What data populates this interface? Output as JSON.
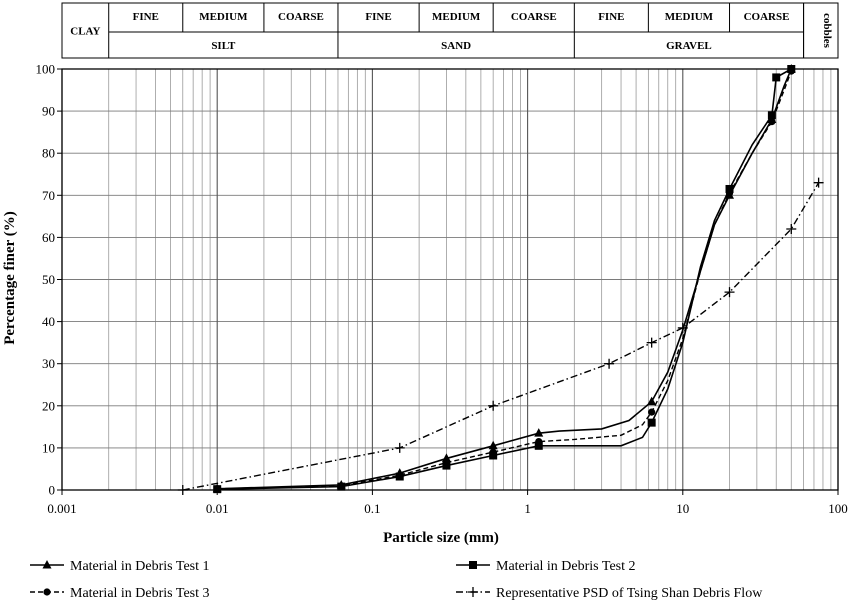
{
  "soil_table": {
    "top_row": [
      {
        "label": "FINE",
        "from": 0.002,
        "to": 0.006
      },
      {
        "label": "MEDIUM",
        "from": 0.006,
        "to": 0.02
      },
      {
        "label": "COARSE",
        "from": 0.02,
        "to": 0.06
      },
      {
        "label": "FINE",
        "from": 0.06,
        "to": 0.2
      },
      {
        "label": "MEDIUM",
        "from": 0.2,
        "to": 0.6
      },
      {
        "label": "COARSE",
        "from": 0.6,
        "to": 2
      },
      {
        "label": "FINE",
        "from": 2,
        "to": 6
      },
      {
        "label": "MEDIUM",
        "from": 6,
        "to": 20
      },
      {
        "label": "COARSE",
        "from": 20,
        "to": 60
      }
    ],
    "bottom_row": [
      {
        "label": "SILT",
        "from": 0.002,
        "to": 0.06
      },
      {
        "label": "SAND",
        "from": 0.06,
        "to": 2
      },
      {
        "label": "GRAVEL",
        "from": 2,
        "to": 60
      }
    ],
    "clay": {
      "label": "CLAY",
      "from": 0.001,
      "to": 0.002
    },
    "cobbles": {
      "label": "cobbles",
      "from": 60,
      "to": 100
    }
  },
  "chart_data": {
    "type": "line",
    "x_scale": "log",
    "xlabel": "Particle size (mm)",
    "ylabel": "Percentage finer (%)",
    "xlim": [
      0.001,
      100
    ],
    "ylim": [
      0,
      100
    ],
    "x_ticks": [
      "0.001",
      "0.01",
      "0.1",
      "1",
      "10",
      "100"
    ],
    "y_ticks": [
      "0",
      "10",
      "20",
      "30",
      "40",
      "50",
      "60",
      "70",
      "80",
      "90",
      "100"
    ],
    "grid": true,
    "legend_position": "bottom",
    "series": [
      {
        "name": "Material in Debris Test 1",
        "marker": "triangle",
        "dash": "solid",
        "points": [
          [
            0.01,
            0.3
          ],
          [
            0.063,
            1.2
          ],
          [
            0.15,
            4
          ],
          [
            0.3,
            7.5
          ],
          [
            0.6,
            10.5
          ],
          [
            1.18,
            13.5
          ],
          [
            6.3,
            21
          ],
          [
            20,
            70
          ],
          [
            37.5,
            88
          ],
          [
            50,
            100
          ]
        ],
        "curve": [
          [
            0.01,
            0.3
          ],
          [
            0.063,
            1.2
          ],
          [
            0.15,
            4
          ],
          [
            0.3,
            7.5
          ],
          [
            0.6,
            10.5
          ],
          [
            1.18,
            13.5
          ],
          [
            1.6,
            14
          ],
          [
            3,
            14.5
          ],
          [
            4.5,
            16.5
          ],
          [
            6.3,
            21
          ],
          [
            8,
            28
          ],
          [
            10,
            38
          ],
          [
            13,
            52
          ],
          [
            16,
            63
          ],
          [
            20,
            70
          ],
          [
            28,
            80
          ],
          [
            37.5,
            88
          ],
          [
            45,
            96
          ],
          [
            50,
            100
          ]
        ]
      },
      {
        "name": "Material in Debris Test 2",
        "marker": "square",
        "dash": "solid",
        "points": [
          [
            0.01,
            0.2
          ],
          [
            0.063,
            0.8
          ],
          [
            0.15,
            3.2
          ],
          [
            0.3,
            5.8
          ],
          [
            0.6,
            8.2
          ],
          [
            1.18,
            10.5
          ],
          [
            6.3,
            16
          ],
          [
            20,
            71.5
          ],
          [
            37.5,
            89
          ],
          [
            40,
            98
          ],
          [
            50,
            100
          ]
        ],
        "curve": [
          [
            0.01,
            0.2
          ],
          [
            0.063,
            0.8
          ],
          [
            0.15,
            3.2
          ],
          [
            0.3,
            5.8
          ],
          [
            0.6,
            8.2
          ],
          [
            1.18,
            10.5
          ],
          [
            2,
            10.5
          ],
          [
            4,
            10.5
          ],
          [
            5.5,
            12.5
          ],
          [
            6.3,
            16
          ],
          [
            8,
            24
          ],
          [
            10,
            35
          ],
          [
            13,
            53
          ],
          [
            16,
            64
          ],
          [
            20,
            71.5
          ],
          [
            28,
            82
          ],
          [
            37.5,
            89
          ],
          [
            40,
            98
          ],
          [
            50,
            100
          ]
        ]
      },
      {
        "name": "Material in Debris Test 3",
        "marker": "circle",
        "dash": "dashed",
        "points": [
          [
            0.01,
            0.3
          ],
          [
            0.063,
            1
          ],
          [
            0.15,
            3.5
          ],
          [
            0.3,
            6.5
          ],
          [
            0.6,
            9
          ],
          [
            1.18,
            11.5
          ],
          [
            6.3,
            18.5
          ],
          [
            20,
            70.5
          ],
          [
            37.5,
            87.5
          ],
          [
            50,
            99.5
          ]
        ],
        "curve": [
          [
            0.01,
            0.3
          ],
          [
            0.063,
            1
          ],
          [
            0.15,
            3.5
          ],
          [
            0.3,
            6.5
          ],
          [
            0.6,
            9
          ],
          [
            1.18,
            11.5
          ],
          [
            2,
            12
          ],
          [
            4,
            13
          ],
          [
            5.5,
            15.5
          ],
          [
            6.3,
            18.5
          ],
          [
            8,
            26
          ],
          [
            10,
            36
          ],
          [
            13,
            52
          ],
          [
            16,
            63
          ],
          [
            20,
            70.5
          ],
          [
            28,
            80
          ],
          [
            37.5,
            87.5
          ],
          [
            45,
            95
          ],
          [
            50,
            99.5
          ]
        ]
      },
      {
        "name": "Representative PSD of Tsing Shan Debris Flow",
        "marker": "plus",
        "dash": "dashdot",
        "points": [
          [
            0.006,
            0
          ],
          [
            0.15,
            10
          ],
          [
            0.6,
            20
          ],
          [
            3.35,
            30
          ],
          [
            6.3,
            35
          ],
          [
            10,
            38.5
          ],
          [
            20,
            47
          ],
          [
            50,
            62
          ],
          [
            75,
            73
          ]
        ],
        "curve": [
          [
            0.006,
            0
          ],
          [
            0.15,
            10
          ],
          [
            0.6,
            20
          ],
          [
            3.35,
            30
          ],
          [
            6.3,
            35
          ],
          [
            10,
            38.5
          ],
          [
            20,
            47
          ],
          [
            50,
            62
          ],
          [
            75,
            73
          ]
        ]
      }
    ]
  }
}
